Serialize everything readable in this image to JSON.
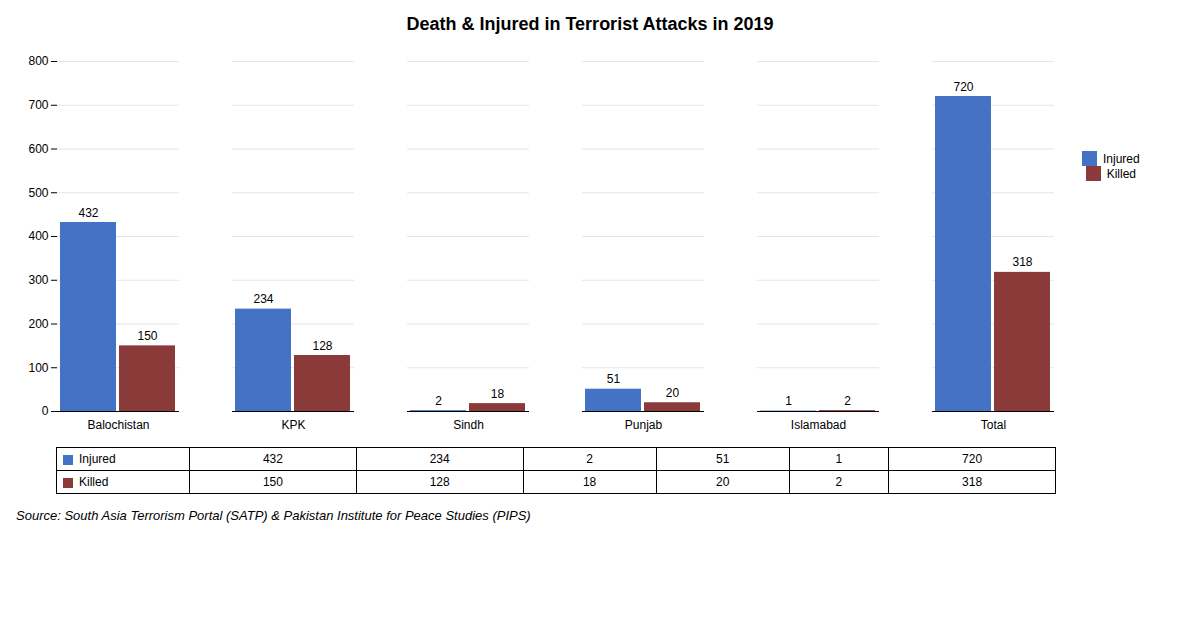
{
  "chart_data": {
    "type": "bar",
    "title": "Death & Injured in Terrorist Attacks in 2019",
    "categories": [
      "Balochistan",
      "KPK",
      "Sindh",
      "Punjab",
      "Islamabad",
      "Total"
    ],
    "series": [
      {
        "name": "Injured",
        "color": "#4472C4",
        "values": [
          432,
          234,
          2,
          51,
          1,
          720
        ]
      },
      {
        "name": "Killed",
        "color": "#8B3A3A",
        "values": [
          150,
          128,
          18,
          20,
          2,
          318
        ]
      }
    ],
    "ylim": [
      0,
      800
    ],
    "yticks": [
      0,
      100,
      200,
      300,
      400,
      500,
      600,
      700,
      800
    ],
    "grid": true,
    "legend": "right",
    "data_labels": true,
    "annotations": [
      "Source: South Asia Terrorism Portal (SATP) & Pakistan Institute for Peace Studies (PIPS)"
    ]
  }
}
